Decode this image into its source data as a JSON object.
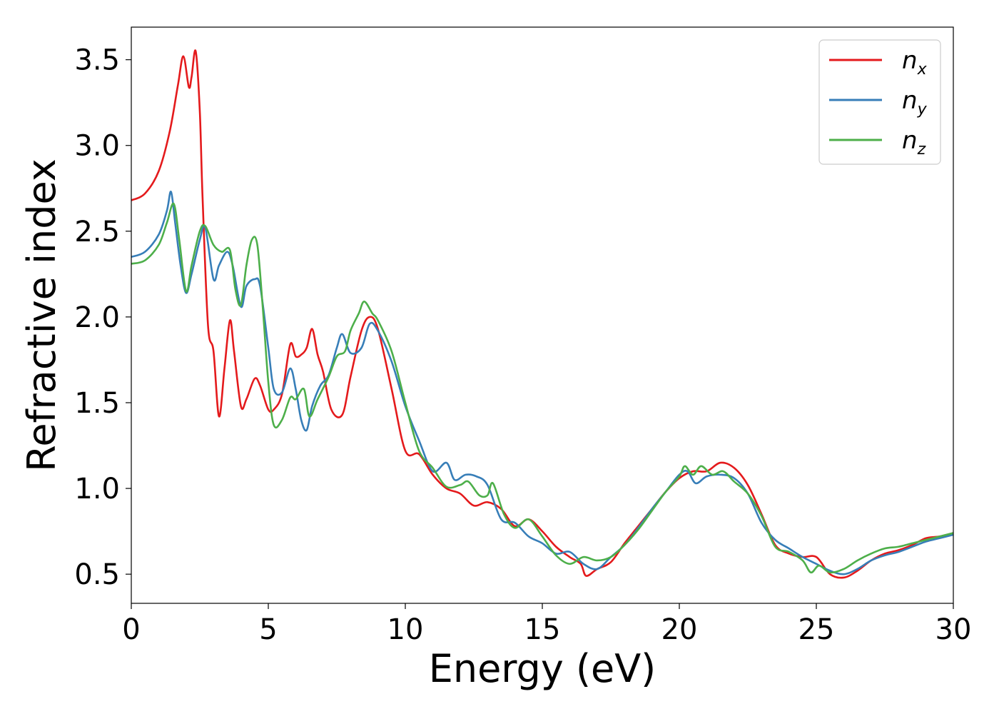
{
  "chart_data": {
    "type": "line",
    "title": "",
    "xlabel": "Energy (eV)",
    "ylabel": "Refractive index",
    "xlim": [
      0,
      30
    ],
    "ylim": [
      0.33,
      3.69
    ],
    "xticks": [
      0,
      5,
      10,
      15,
      20,
      25,
      30
    ],
    "yticks": [
      0.5,
      1.0,
      1.5,
      2.0,
      2.5,
      3.0,
      3.5
    ],
    "xtick_labels": [
      "0",
      "5",
      "10",
      "15",
      "20",
      "25",
      "30"
    ],
    "ytick_labels": [
      "0.5",
      "1.0",
      "1.5",
      "2.0",
      "2.5",
      "3.0",
      "3.5"
    ],
    "grid": false,
    "legend_position": "top-right",
    "series": [
      {
        "name": "n_x",
        "legend_base": "n",
        "legend_sub": "x",
        "color": "#e41a1c",
        "x": [
          0,
          0.5,
          1.0,
          1.4,
          1.7,
          1.9,
          2.1,
          2.2,
          2.35,
          2.5,
          2.6,
          2.8,
          3.0,
          3.2,
          3.4,
          3.6,
          3.75,
          4.0,
          4.2,
          4.5,
          4.7,
          5.0,
          5.2,
          5.5,
          5.8,
          6.0,
          6.2,
          6.4,
          6.6,
          6.8,
          7.0,
          7.3,
          7.7,
          8.0,
          8.4,
          8.7,
          9.0,
          9.5,
          10.0,
          10.5,
          11.0,
          11.5,
          12.0,
          12.5,
          13.0,
          13.5,
          14.0,
          14.5,
          15.0,
          15.5,
          16.0,
          16.4,
          16.6,
          17.0,
          17.5,
          18.0,
          18.5,
          19.0,
          19.5,
          20.0,
          20.5,
          21.0,
          21.5,
          22.0,
          22.5,
          23.0,
          23.5,
          24.0,
          24.5,
          25.0,
          25.5,
          26.0,
          26.5,
          27.0,
          27.5,
          28.0,
          28.5,
          29.0,
          29.5,
          30.0
        ],
        "y": [
          2.68,
          2.72,
          2.85,
          3.08,
          3.35,
          3.52,
          3.34,
          3.4,
          3.55,
          3.2,
          2.7,
          1.95,
          1.8,
          1.42,
          1.7,
          1.98,
          1.8,
          1.48,
          1.52,
          1.64,
          1.6,
          1.46,
          1.46,
          1.55,
          1.84,
          1.77,
          1.78,
          1.82,
          1.93,
          1.78,
          1.68,
          1.46,
          1.43,
          1.65,
          1.92,
          2.0,
          1.93,
          1.58,
          1.22,
          1.2,
          1.08,
          1.0,
          0.97,
          0.9,
          0.92,
          0.88,
          0.78,
          0.82,
          0.75,
          0.66,
          0.6,
          0.56,
          0.49,
          0.53,
          0.57,
          0.68,
          0.78,
          0.88,
          0.98,
          1.06,
          1.1,
          1.1,
          1.15,
          1.12,
          1.02,
          0.85,
          0.67,
          0.62,
          0.6,
          0.6,
          0.5,
          0.48,
          0.52,
          0.58,
          0.62,
          0.64,
          0.67,
          0.71,
          0.72,
          0.74
        ]
      },
      {
        "name": "n_y",
        "legend_base": "n",
        "legend_sub": "y",
        "color": "#377eb8",
        "x": [
          0,
          0.5,
          1.0,
          1.3,
          1.45,
          1.6,
          1.8,
          2.0,
          2.2,
          2.5,
          2.7,
          3.0,
          3.2,
          3.5,
          3.7,
          4.0,
          4.2,
          4.5,
          4.7,
          5.0,
          5.2,
          5.5,
          5.8,
          6.0,
          6.2,
          6.4,
          6.6,
          6.9,
          7.2,
          7.5,
          7.7,
          8.0,
          8.4,
          8.7,
          9.0,
          9.5,
          10.0,
          10.5,
          11.0,
          11.5,
          11.8,
          12.2,
          12.6,
          13.0,
          13.5,
          14.0,
          14.5,
          15.0,
          15.5,
          16.0,
          16.5,
          17.0,
          17.5,
          18.0,
          18.5,
          19.0,
          19.5,
          20.0,
          20.3,
          20.6,
          21.0,
          21.5,
          22.0,
          22.5,
          23.0,
          23.5,
          24.0,
          24.5,
          25.0,
          25.5,
          26.0,
          26.5,
          27.0,
          27.5,
          28.0,
          28.5,
          29.0,
          29.5,
          30.0
        ],
        "y": [
          2.35,
          2.38,
          2.48,
          2.62,
          2.73,
          2.55,
          2.3,
          2.14,
          2.25,
          2.45,
          2.52,
          2.22,
          2.3,
          2.38,
          2.3,
          2.06,
          2.18,
          2.22,
          2.18,
          1.82,
          1.58,
          1.56,
          1.7,
          1.58,
          1.4,
          1.34,
          1.48,
          1.6,
          1.66,
          1.82,
          1.9,
          1.79,
          1.82,
          1.96,
          1.92,
          1.74,
          1.48,
          1.28,
          1.1,
          1.15,
          1.05,
          1.08,
          1.07,
          1.02,
          0.82,
          0.8,
          0.72,
          0.68,
          0.62,
          0.63,
          0.56,
          0.53,
          0.6,
          0.67,
          0.77,
          0.88,
          0.98,
          1.08,
          1.1,
          1.03,
          1.07,
          1.08,
          1.06,
          0.97,
          0.8,
          0.7,
          0.65,
          0.6,
          0.56,
          0.52,
          0.5,
          0.53,
          0.58,
          0.61,
          0.63,
          0.66,
          0.69,
          0.71,
          0.73
        ]
      },
      {
        "name": "n_z",
        "legend_base": "n",
        "legend_sub": "z",
        "color": "#4daf4a",
        "x": [
          0,
          0.5,
          1.0,
          1.3,
          1.55,
          1.75,
          2.0,
          2.2,
          2.5,
          2.7,
          3.0,
          3.3,
          3.6,
          3.8,
          4.0,
          4.2,
          4.4,
          4.6,
          4.8,
          5.0,
          5.2,
          5.5,
          5.8,
          6.0,
          6.3,
          6.5,
          6.8,
          7.2,
          7.5,
          7.8,
          8.0,
          8.3,
          8.5,
          8.8,
          9.0,
          9.5,
          10.0,
          10.5,
          11.0,
          11.5,
          12.0,
          12.3,
          12.7,
          13.0,
          13.2,
          13.6,
          14.0,
          14.5,
          15.0,
          15.5,
          16.0,
          16.5,
          17.0,
          17.5,
          18.0,
          18.5,
          19.0,
          19.5,
          20.0,
          20.2,
          20.5,
          20.8,
          21.2,
          21.6,
          22.0,
          22.5,
          23.0,
          23.5,
          24.0,
          24.5,
          24.8,
          25.1,
          25.5,
          26.0,
          26.5,
          27.0,
          27.5,
          28.0,
          28.5,
          29.0,
          29.5,
          30.0
        ],
        "y": [
          2.31,
          2.33,
          2.42,
          2.55,
          2.66,
          2.45,
          2.15,
          2.3,
          2.5,
          2.53,
          2.42,
          2.38,
          2.39,
          2.16,
          2.07,
          2.3,
          2.45,
          2.42,
          2.05,
          1.62,
          1.37,
          1.4,
          1.53,
          1.52,
          1.58,
          1.42,
          1.52,
          1.65,
          1.77,
          1.8,
          1.92,
          2.02,
          2.09,
          2.02,
          1.98,
          1.8,
          1.5,
          1.22,
          1.12,
          1.01,
          1.02,
          1.04,
          0.96,
          0.96,
          1.03,
          0.85,
          0.77,
          0.82,
          0.72,
          0.61,
          0.56,
          0.6,
          0.58,
          0.6,
          0.67,
          0.76,
          0.87,
          0.98,
          1.07,
          1.13,
          1.08,
          1.13,
          1.08,
          1.1,
          1.04,
          0.97,
          0.84,
          0.66,
          0.63,
          0.58,
          0.51,
          0.55,
          0.51,
          0.53,
          0.58,
          0.62,
          0.65,
          0.66,
          0.68,
          0.7,
          0.72,
          0.74
        ]
      }
    ]
  }
}
